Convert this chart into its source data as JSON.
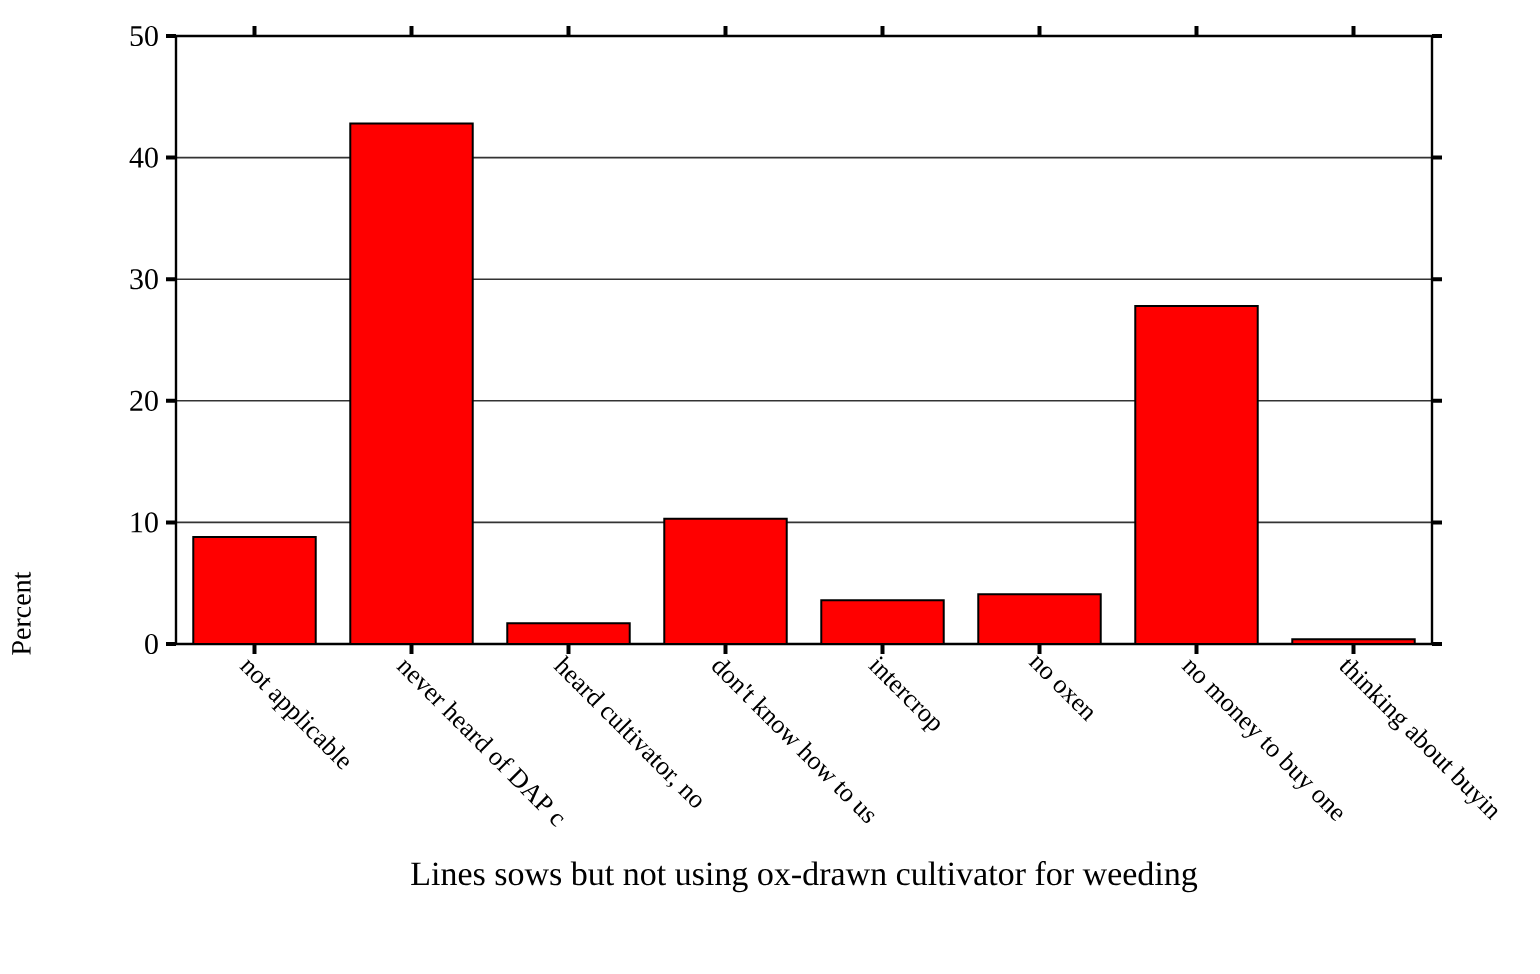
{
  "chart_data": {
    "type": "bar",
    "xlabel": "Lines sows but not using ox-drawn cultivator for weeding",
    "ylabel": "Percent",
    "categories": [
      "not applicable",
      "never heard of DAP c",
      "heard cultivator, no",
      "don't know how to us",
      "intercrop",
      "no oxen",
      "no money to buy one",
      "thinking about buyin"
    ],
    "values": [
      8.8,
      42.8,
      1.7,
      10.3,
      3.6,
      4.1,
      27.8,
      0.4
    ],
    "color": "#ff0000",
    "ylim": [
      0,
      50
    ],
    "yticks": [
      0,
      10,
      20,
      30,
      40,
      50
    ],
    "grid": "y"
  }
}
